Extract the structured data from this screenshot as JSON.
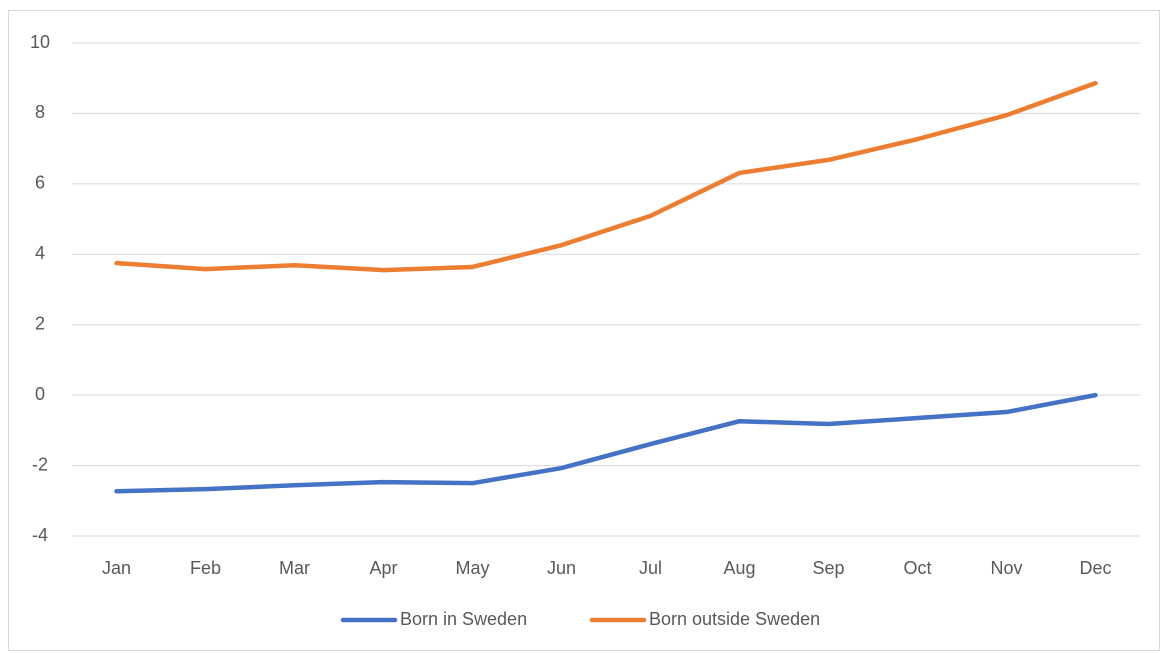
{
  "chart_data": {
    "type": "line",
    "categories": [
      "Jan",
      "Feb",
      "Mar",
      "Apr",
      "May",
      "Jun",
      "Jul",
      "Aug",
      "Sep",
      "Oct",
      "Nov",
      "Dec"
    ],
    "series": [
      {
        "name": "Born in Sweden",
        "color": "#4472c4",
        "values": [
          -2.73,
          -2.67,
          -2.56,
          -2.47,
          -2.5,
          -2.07,
          -1.39,
          -0.74,
          -0.82,
          -0.65,
          -0.48,
          0
        ]
      },
      {
        "name": "Born outside Sweden",
        "color": "#ed7d31",
        "values": [
          3.75,
          3.58,
          3.69,
          3.55,
          3.64,
          4.26,
          5.09,
          6.31,
          6.68,
          7.27,
          7.95,
          8.86
        ]
      }
    ],
    "ylim": [
      -4,
      10
    ],
    "yticks": [
      -4,
      -2,
      0,
      2,
      4,
      6,
      8,
      10
    ],
    "grid": true,
    "legend": "bottom"
  }
}
